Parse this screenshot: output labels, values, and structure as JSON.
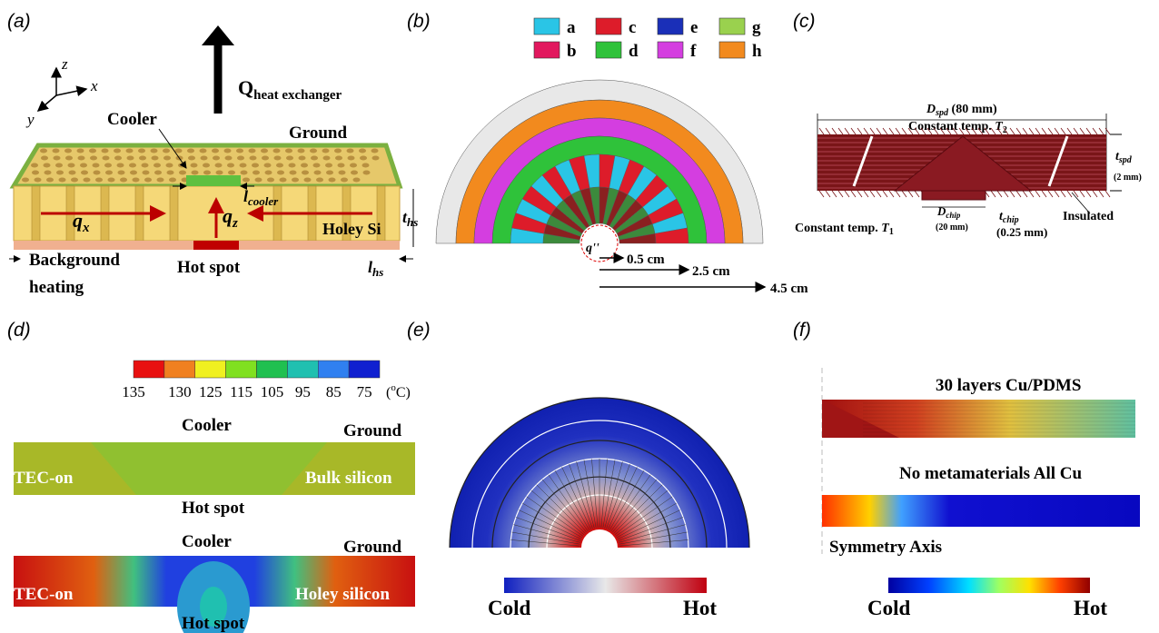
{
  "panels": {
    "a": {
      "label": "(a)",
      "axis_z": "z",
      "axis_x": "x",
      "axis_y": "y",
      "q_main": "Q",
      "q_sub": "heat exchanger",
      "cooler": "Cooler",
      "ground": "Ground",
      "qx": "q",
      "qx_sub": "x",
      "qz": "q",
      "qz_sub": "z",
      "lc": "l",
      "lc_sub": "cooler",
      "ths": "t",
      "ths_sub": "hs",
      "lhs": "l",
      "lhs_sub": "hs",
      "holey": "Holey Si",
      "hot_spot": "Hot spot",
      "background": "Background",
      "heating": "heating"
    },
    "b": {
      "label": "(b)",
      "legend": [
        {
          "name": "a",
          "color": "#2ac5e6"
        },
        {
          "name": "c",
          "color": "#dd1c2a"
        },
        {
          "name": "e",
          "color": "#1a2fb8"
        },
        {
          "name": "g",
          "color": "#9ad14e"
        },
        {
          "name": "b",
          "color": "#e2185e"
        },
        {
          "name": "d",
          "color": "#2fc23a"
        },
        {
          "name": "f",
          "color": "#d43ee0"
        },
        {
          "name": "h",
          "color": "#f28a1e"
        }
      ],
      "flux": "q''",
      "r1": "0.5 cm",
      "r2": "2.5 cm",
      "r3": "4.5 cm"
    },
    "c": {
      "label": "(c)",
      "dspd": "D",
      "dspd_sub": "spd",
      "dspd_val": " (80 mm)",
      "t2": "Constant temp. ",
      "t2_sym": "T",
      "t2_sub": "2",
      "tspd": "t",
      "tspd_sub": "spd",
      "tspd_val": "(2 mm)",
      "t1": "Constant temp. ",
      "t1_sym": "T",
      "t1_sub": "1",
      "dchip": "D",
      "dchip_sub": "chip",
      "dchip_val": "(20 mm)",
      "tchip": "t",
      "tchip_sub": "chip",
      "tchip_val": "(0.25 mm)",
      "insulated": "Insulated"
    },
    "d": {
      "label": "(d)",
      "colorbar_ticks": [
        135,
        130,
        125,
        115,
        105,
        95,
        85,
        75
      ],
      "unit_open": "(",
      "unit_deg": "o",
      "unit_close": "C)",
      "top": {
        "cooler": "Cooler",
        "ground": "Ground",
        "left": "TEC-on",
        "right": "Bulk silicon",
        "hot_spot": "Hot spot"
      },
      "bottom": {
        "cooler": "Cooler",
        "ground": "Ground",
        "left": "TEC-on",
        "right": "Holey silicon",
        "hot_spot": "Hot spot"
      }
    },
    "e": {
      "label": "(e)",
      "cold": "Cold",
      "hot": "Hot"
    },
    "f": {
      "label": "(f)",
      "title1": "30 layers Cu/PDMS",
      "title2": "No metamaterials All Cu",
      "axis": "Symmetry Axis",
      "cold": "Cold",
      "hot": "Hot"
    }
  }
}
